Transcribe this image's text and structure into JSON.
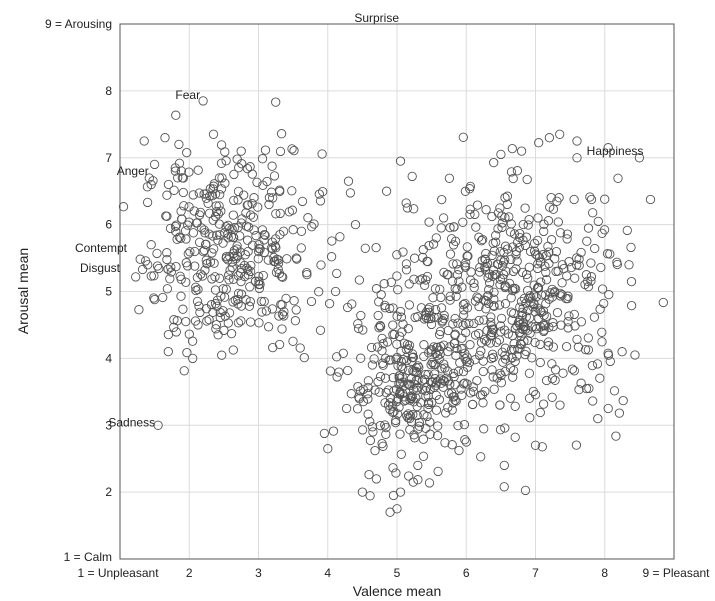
{
  "chart_data": {
    "type": "scatter",
    "title": "",
    "xlabel": "Valence mean",
    "ylabel": "Arousal mean",
    "xlim": [
      1,
      9
    ],
    "ylim": [
      1,
      9
    ],
    "grid": true,
    "x_ticks": [
      "1 = Unpleasant",
      "2",
      "3",
      "4",
      "5",
      "6",
      "7",
      "8",
      "9 = Pleasant"
    ],
    "y_ticks": [
      "1 = Calm",
      "2",
      "3",
      "4",
      "5",
      "6",
      "7",
      "8",
      "9 = Arousing"
    ],
    "annotations": [
      {
        "text": "Surprise",
        "x": 5.0,
        "y": 9.0
      },
      {
        "text": "Fear",
        "x": 2.2,
        "y": 7.85
      },
      {
        "text": "Anger",
        "x": 1.3,
        "y": 6.8
      },
      {
        "text": "Contempt",
        "x": 1.0,
        "y": 5.65
      },
      {
        "text": "Disgust",
        "x": 1.0,
        "y": 5.35
      },
      {
        "text": "Sadness",
        "x": 1.55,
        "y": 3.0
      },
      {
        "text": "Happiness",
        "x": 8.5,
        "y": 7.0
      }
    ],
    "clusters": [
      {
        "cx": 2.6,
        "cy": 5.6,
        "sx": 0.65,
        "sy": 0.75,
        "n": 380
      },
      {
        "cx": 5.2,
        "cy": 3.6,
        "sx": 0.5,
        "sy": 0.55,
        "n": 300
      },
      {
        "cx": 6.8,
        "cy": 4.9,
        "sx": 0.75,
        "sy": 0.85,
        "n": 470
      },
      {
        "cx": 5.8,
        "cy": 5.2,
        "sx": 0.6,
        "sy": 0.6,
        "n": 60
      }
    ],
    "points": [
      [
        5.0,
        9.0
      ],
      [
        2.2,
        7.85
      ],
      [
        2.35,
        7.35
      ],
      [
        1.35,
        7.25
      ],
      [
        1.65,
        7.3
      ],
      [
        1.85,
        7.2
      ],
      [
        2.75,
        7.1
      ],
      [
        1.5,
        6.9
      ],
      [
        1.8,
        6.8
      ],
      [
        1.9,
        6.7
      ],
      [
        1.7,
        6.6
      ],
      [
        1.45,
        6.6
      ],
      [
        1.45,
        5.7
      ],
      [
        1.4,
        5.4
      ],
      [
        1.55,
        3.0
      ],
      [
        1.95,
        4.55
      ],
      [
        2.05,
        4.0
      ],
      [
        5.05,
        6.95
      ],
      [
        4.3,
        6.65
      ],
      [
        4.85,
        6.5
      ],
      [
        5.15,
        6.25
      ],
      [
        4.4,
        6.0
      ],
      [
        4.9,
        1.7
      ],
      [
        5.0,
        1.75
      ],
      [
        4.95,
        1.95
      ],
      [
        5.05,
        2.0
      ],
      [
        4.5,
        2.0
      ],
      [
        7.2,
        7.3
      ],
      [
        7.35,
        7.35
      ],
      [
        7.6,
        7.25
      ],
      [
        6.8,
        7.1
      ],
      [
        6.5,
        7.05
      ],
      [
        8.05,
        7.15
      ],
      [
        8.5,
        7.0
      ],
      [
        7.6,
        7.0
      ],
      [
        8.35,
        5.4
      ],
      [
        8.25,
        4.1
      ],
      [
        8.05,
        3.25
      ],
      [
        7.9,
        3.1
      ],
      [
        7.0,
        2.7
      ],
      [
        6.0,
        2.75
      ],
      [
        6.55,
        2.4
      ],
      [
        5.3,
        2.4
      ],
      [
        4.0,
        2.65
      ]
    ]
  }
}
